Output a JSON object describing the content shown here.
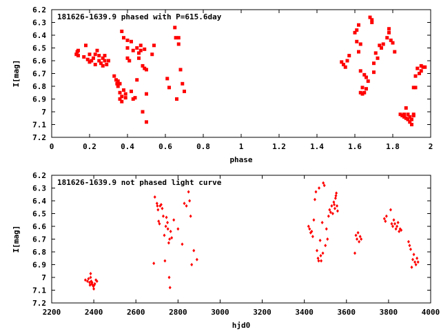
{
  "chart_data": [
    {
      "type": "scatter",
      "title": "181626-1639.9 phased with P=615.6day",
      "xlabel": "phase",
      "ylabel": "I[mag]",
      "xlim": [
        0,
        2
      ],
      "ylim": [
        7.2,
        6.2
      ],
      "y_inverted": true,
      "xticks": [
        "0",
        "0.2",
        "0.4",
        "0.6",
        "0.8",
        "1",
        "1.2",
        "1.4",
        "1.6",
        "1.8",
        "2"
      ],
      "yticks": [
        "6.2",
        "6.3",
        "6.4",
        "6.5",
        "6.6",
        "6.7",
        "6.8",
        "6.9",
        "7",
        "7.1",
        "7.2"
      ],
      "xtick_values": [
        0,
        0.2,
        0.4,
        0.6,
        0.8,
        1,
        1.2,
        1.4,
        1.6,
        1.8,
        2
      ],
      "ytick_values": [
        6.2,
        6.3,
        6.4,
        6.5,
        6.6,
        6.7,
        6.8,
        6.9,
        7.0,
        7.1,
        7.2
      ],
      "grid": false,
      "marker_color": "#ff0000",
      "series": [
        {
          "points": [
            [
              0.13,
              6.55
            ],
            [
              0.135,
              6.53
            ],
            [
              0.14,
              6.56
            ],
            [
              0.14,
              6.52
            ],
            [
              0.17,
              6.57
            ],
            [
              0.18,
              6.48
            ],
            [
              0.19,
              6.59
            ],
            [
              0.2,
              6.55
            ],
            [
              0.2,
              6.61
            ],
            [
              0.21,
              6.6
            ],
            [
              0.22,
              6.58
            ],
            [
              0.23,
              6.63
            ],
            [
              0.23,
              6.55
            ],
            [
              0.24,
              6.52
            ],
            [
              0.25,
              6.6
            ],
            [
              0.25,
              6.56
            ],
            [
              0.26,
              6.62
            ],
            [
              0.27,
              6.58
            ],
            [
              0.27,
              6.64
            ],
            [
              0.28,
              6.6
            ],
            [
              0.28,
              6.56
            ],
            [
              0.29,
              6.63
            ],
            [
              0.3,
              6.6
            ],
            [
              0.33,
              6.72
            ],
            [
              0.34,
              6.75
            ],
            [
              0.345,
              6.78
            ],
            [
              0.35,
              6.76
            ],
            [
              0.35,
              6.8
            ],
            [
              0.36,
              6.78
            ],
            [
              0.36,
              6.85
            ],
            [
              0.36,
              6.9
            ],
            [
              0.37,
              6.92
            ],
            [
              0.37,
              6.88
            ],
            [
              0.37,
              6.37
            ],
            [
              0.38,
              6.42
            ],
            [
              0.38,
              6.83
            ],
            [
              0.39,
              6.86
            ],
            [
              0.39,
              6.89
            ],
            [
              0.4,
              6.44
            ],
            [
              0.4,
              6.5
            ],
            [
              0.4,
              6.58
            ],
            [
              0.41,
              6.6
            ],
            [
              0.42,
              6.84
            ],
            [
              0.42,
              6.45
            ],
            [
              0.43,
              6.52
            ],
            [
              0.43,
              6.9
            ],
            [
              0.44,
              6.89
            ],
            [
              0.45,
              6.5
            ],
            [
              0.45,
              6.75
            ],
            [
              0.46,
              6.54
            ],
            [
              0.46,
              6.58
            ],
            [
              0.47,
              6.52
            ],
            [
              0.47,
              6.48
            ],
            [
              0.48,
              6.64
            ],
            [
              0.48,
              7.0
            ],
            [
              0.49,
              6.66
            ],
            [
              0.49,
              6.51
            ],
            [
              0.5,
              7.08
            ],
            [
              0.5,
              6.86
            ],
            [
              0.5,
              6.67
            ],
            [
              0.53,
              6.55
            ],
            [
              0.54,
              6.48
            ],
            [
              0.61,
              6.74
            ],
            [
              0.62,
              6.81
            ],
            [
              0.65,
              6.34
            ],
            [
              0.655,
              6.42
            ],
            [
              0.66,
              6.9
            ],
            [
              0.67,
              6.47
            ],
            [
              0.67,
              6.42
            ],
            [
              0.68,
              6.67
            ],
            [
              0.69,
              6.78
            ],
            [
              0.7,
              6.84
            ],
            [
              1.53,
              6.61
            ],
            [
              1.54,
              6.63
            ],
            [
              1.55,
              6.65
            ],
            [
              1.56,
              6.6
            ],
            [
              1.57,
              6.56
            ],
            [
              1.6,
              6.38
            ],
            [
              1.61,
              6.36
            ],
            [
              1.61,
              6.45
            ],
            [
              1.62,
              6.32
            ],
            [
              1.62,
              6.53
            ],
            [
              1.63,
              6.68
            ],
            [
              1.63,
              6.85
            ],
            [
              1.63,
              6.47
            ],
            [
              1.64,
              6.81
            ],
            [
              1.64,
              6.86
            ],
            [
              1.65,
              6.85
            ],
            [
              1.65,
              6.71
            ],
            [
              1.66,
              6.73
            ],
            [
              1.66,
              6.82
            ],
            [
              1.67,
              6.76
            ],
            [
              1.68,
              6.26
            ],
            [
              1.69,
              6.28
            ],
            [
              1.69,
              6.3
            ],
            [
              1.7,
              6.69
            ],
            [
              1.7,
              6.62
            ],
            [
              1.71,
              6.54
            ],
            [
              1.72,
              6.58
            ],
            [
              1.73,
              6.48
            ],
            [
              1.74,
              6.5
            ],
            [
              1.75,
              6.47
            ],
            [
              1.77,
              6.42
            ],
            [
              1.78,
              6.35
            ],
            [
              1.78,
              6.38
            ],
            [
              1.79,
              6.44
            ],
            [
              1.8,
              6.46
            ],
            [
              1.81,
              6.53
            ],
            [
              1.84,
              7.02
            ],
            [
              1.85,
              7.03
            ],
            [
              1.86,
              7.04
            ],
            [
              1.86,
              7.02
            ],
            [
              1.87,
              7.05
            ],
            [
              1.87,
              6.97
            ],
            [
              1.88,
              7.06
            ],
            [
              1.88,
              7.02
            ],
            [
              1.89,
              7.04
            ],
            [
              1.89,
              7.08
            ],
            [
              1.9,
              7.1
            ],
            [
              1.9,
              7.06
            ],
            [
              1.91,
              7.03
            ],
            [
              1.91,
              7.02
            ],
            [
              1.91,
              6.81
            ],
            [
              1.92,
              6.81
            ],
            [
              1.92,
              6.72
            ],
            [
              1.93,
              6.66
            ],
            [
              1.94,
              6.7
            ],
            [
              1.95,
              6.64
            ],
            [
              1.95,
              6.68
            ],
            [
              1.96,
              6.65
            ],
            [
              1.97,
              6.65
            ]
          ]
        }
      ]
    },
    {
      "type": "scatter",
      "title": "181626-1639.9 not phased light curve",
      "xlabel": "hjd0",
      "ylabel": "I[mag]",
      "xlim": [
        2200,
        4000
      ],
      "ylim": [
        7.2,
        6.2
      ],
      "y_inverted": true,
      "xticks": [
        "2200",
        "2400",
        "2600",
        "2800",
        "3000",
        "3200",
        "3400",
        "3600",
        "3800",
        "4000"
      ],
      "yticks": [
        "6.2",
        "6.3",
        "6.4",
        "6.5",
        "6.6",
        "6.7",
        "6.8",
        "6.9",
        "7",
        "7.1",
        "7.2"
      ],
      "xtick_values": [
        2200,
        2400,
        2600,
        2800,
        3000,
        3200,
        3400,
        3600,
        3800,
        4000
      ],
      "ytick_values": [
        6.2,
        6.3,
        6.4,
        6.5,
        6.6,
        6.7,
        6.8,
        6.9,
        7.0,
        7.1,
        7.2
      ],
      "grid": false,
      "marker_color": "#ff0000",
      "series": [
        {
          "points": [
            [
              2360,
              7.02
            ],
            [
              2370,
              7.03
            ],
            [
              2375,
              7.01
            ],
            [
              2380,
              7.04
            ],
            [
              2382,
              7.06
            ],
            [
              2385,
              7.0
            ],
            [
              2385,
              6.97
            ],
            [
              2388,
              7.03
            ],
            [
              2390,
              7.05
            ],
            [
              2392,
              7.04
            ],
            [
              2395,
              7.06
            ],
            [
              2398,
              7.07
            ],
            [
              2400,
              7.09
            ],
            [
              2402,
              7.06
            ],
            [
              2405,
              7.05
            ],
            [
              2410,
              7.02
            ],
            [
              2415,
              7.03
            ],
            [
              2685,
              6.89
            ],
            [
              2690,
              6.37
            ],
            [
              2700,
              6.42
            ],
            [
              2702,
              6.44
            ],
            [
              2705,
              6.47
            ],
            [
              2708,
              6.56
            ],
            [
              2712,
              6.58
            ],
            [
              2715,
              6.44
            ],
            [
              2720,
              6.43
            ],
            [
              2725,
              6.46
            ],
            [
              2730,
              6.52
            ],
            [
              2735,
              6.67
            ],
            [
              2738,
              6.87
            ],
            [
              2742,
              6.6
            ],
            [
              2745,
              6.53
            ],
            [
              2750,
              6.57
            ],
            [
              2752,
              6.62
            ],
            [
              2756,
              6.73
            ],
            [
              2758,
              7.0
            ],
            [
              2760,
              6.7
            ],
            [
              2762,
              7.08
            ],
            [
              2765,
              6.64
            ],
            [
              2770,
              6.69
            ],
            [
              2780,
              6.55
            ],
            [
              2800,
              6.62
            ],
            [
              2820,
              6.74
            ],
            [
              2830,
              6.42
            ],
            [
              2840,
              6.44
            ],
            [
              2850,
              6.33
            ],
            [
              2855,
              6.4
            ],
            [
              2860,
              6.52
            ],
            [
              2865,
              6.9
            ],
            [
              2875,
              6.79
            ],
            [
              2890,
              6.86
            ],
            [
              3420,
              6.6
            ],
            [
              3425,
              6.62
            ],
            [
              3430,
              6.65
            ],
            [
              3435,
              6.64
            ],
            [
              3440,
              6.68
            ],
            [
              3445,
              6.55
            ],
            [
              3450,
              6.39
            ],
            [
              3455,
              6.33
            ],
            [
              3460,
              6.79
            ],
            [
              3465,
              6.85
            ],
            [
              3468,
              6.87
            ],
            [
              3470,
              6.3
            ],
            [
              3475,
              6.71
            ],
            [
              3478,
              6.83
            ],
            [
              3480,
              6.87
            ],
            [
              3485,
              6.57
            ],
            [
              3488,
              6.81
            ],
            [
              3490,
              6.26
            ],
            [
              3495,
              6.28
            ],
            [
              3500,
              6.75
            ],
            [
              3505,
              6.62
            ],
            [
              3510,
              6.7
            ],
            [
              3515,
              6.52
            ],
            [
              3520,
              6.47
            ],
            [
              3525,
              6.49
            ],
            [
              3530,
              6.44
            ],
            [
              3535,
              6.5
            ],
            [
              3540,
              6.41
            ],
            [
              3542,
              6.43
            ],
            [
              3545,
              6.46
            ],
            [
              3548,
              6.38
            ],
            [
              3550,
              6.36
            ],
            [
              3552,
              6.34
            ],
            [
              3555,
              6.44
            ],
            [
              3558,
              6.48
            ],
            [
              3640,
              6.81
            ],
            [
              3645,
              6.67
            ],
            [
              3650,
              6.7
            ],
            [
              3655,
              6.65
            ],
            [
              3660,
              6.72
            ],
            [
              3665,
              6.68
            ],
            [
              3670,
              6.7
            ],
            [
              3780,
              6.54
            ],
            [
              3785,
              6.56
            ],
            [
              3790,
              6.52
            ],
            [
              3810,
              6.47
            ],
            [
              3815,
              6.58
            ],
            [
              3820,
              6.6
            ],
            [
              3825,
              6.55
            ],
            [
              3830,
              6.58
            ],
            [
              3835,
              6.62
            ],
            [
              3840,
              6.6
            ],
            [
              3845,
              6.57
            ],
            [
              3850,
              6.64
            ],
            [
              3855,
              6.62
            ],
            [
              3860,
              6.63
            ],
            [
              3895,
              6.72
            ],
            [
              3900,
              6.75
            ],
            [
              3905,
              6.78
            ],
            [
              3910,
              6.92
            ],
            [
              3915,
              6.86
            ],
            [
              3920,
              6.82
            ],
            [
              3925,
              6.88
            ],
            [
              3930,
              6.9
            ],
            [
              3935,
              6.85
            ],
            [
              3940,
              6.88
            ]
          ]
        }
      ]
    }
  ]
}
